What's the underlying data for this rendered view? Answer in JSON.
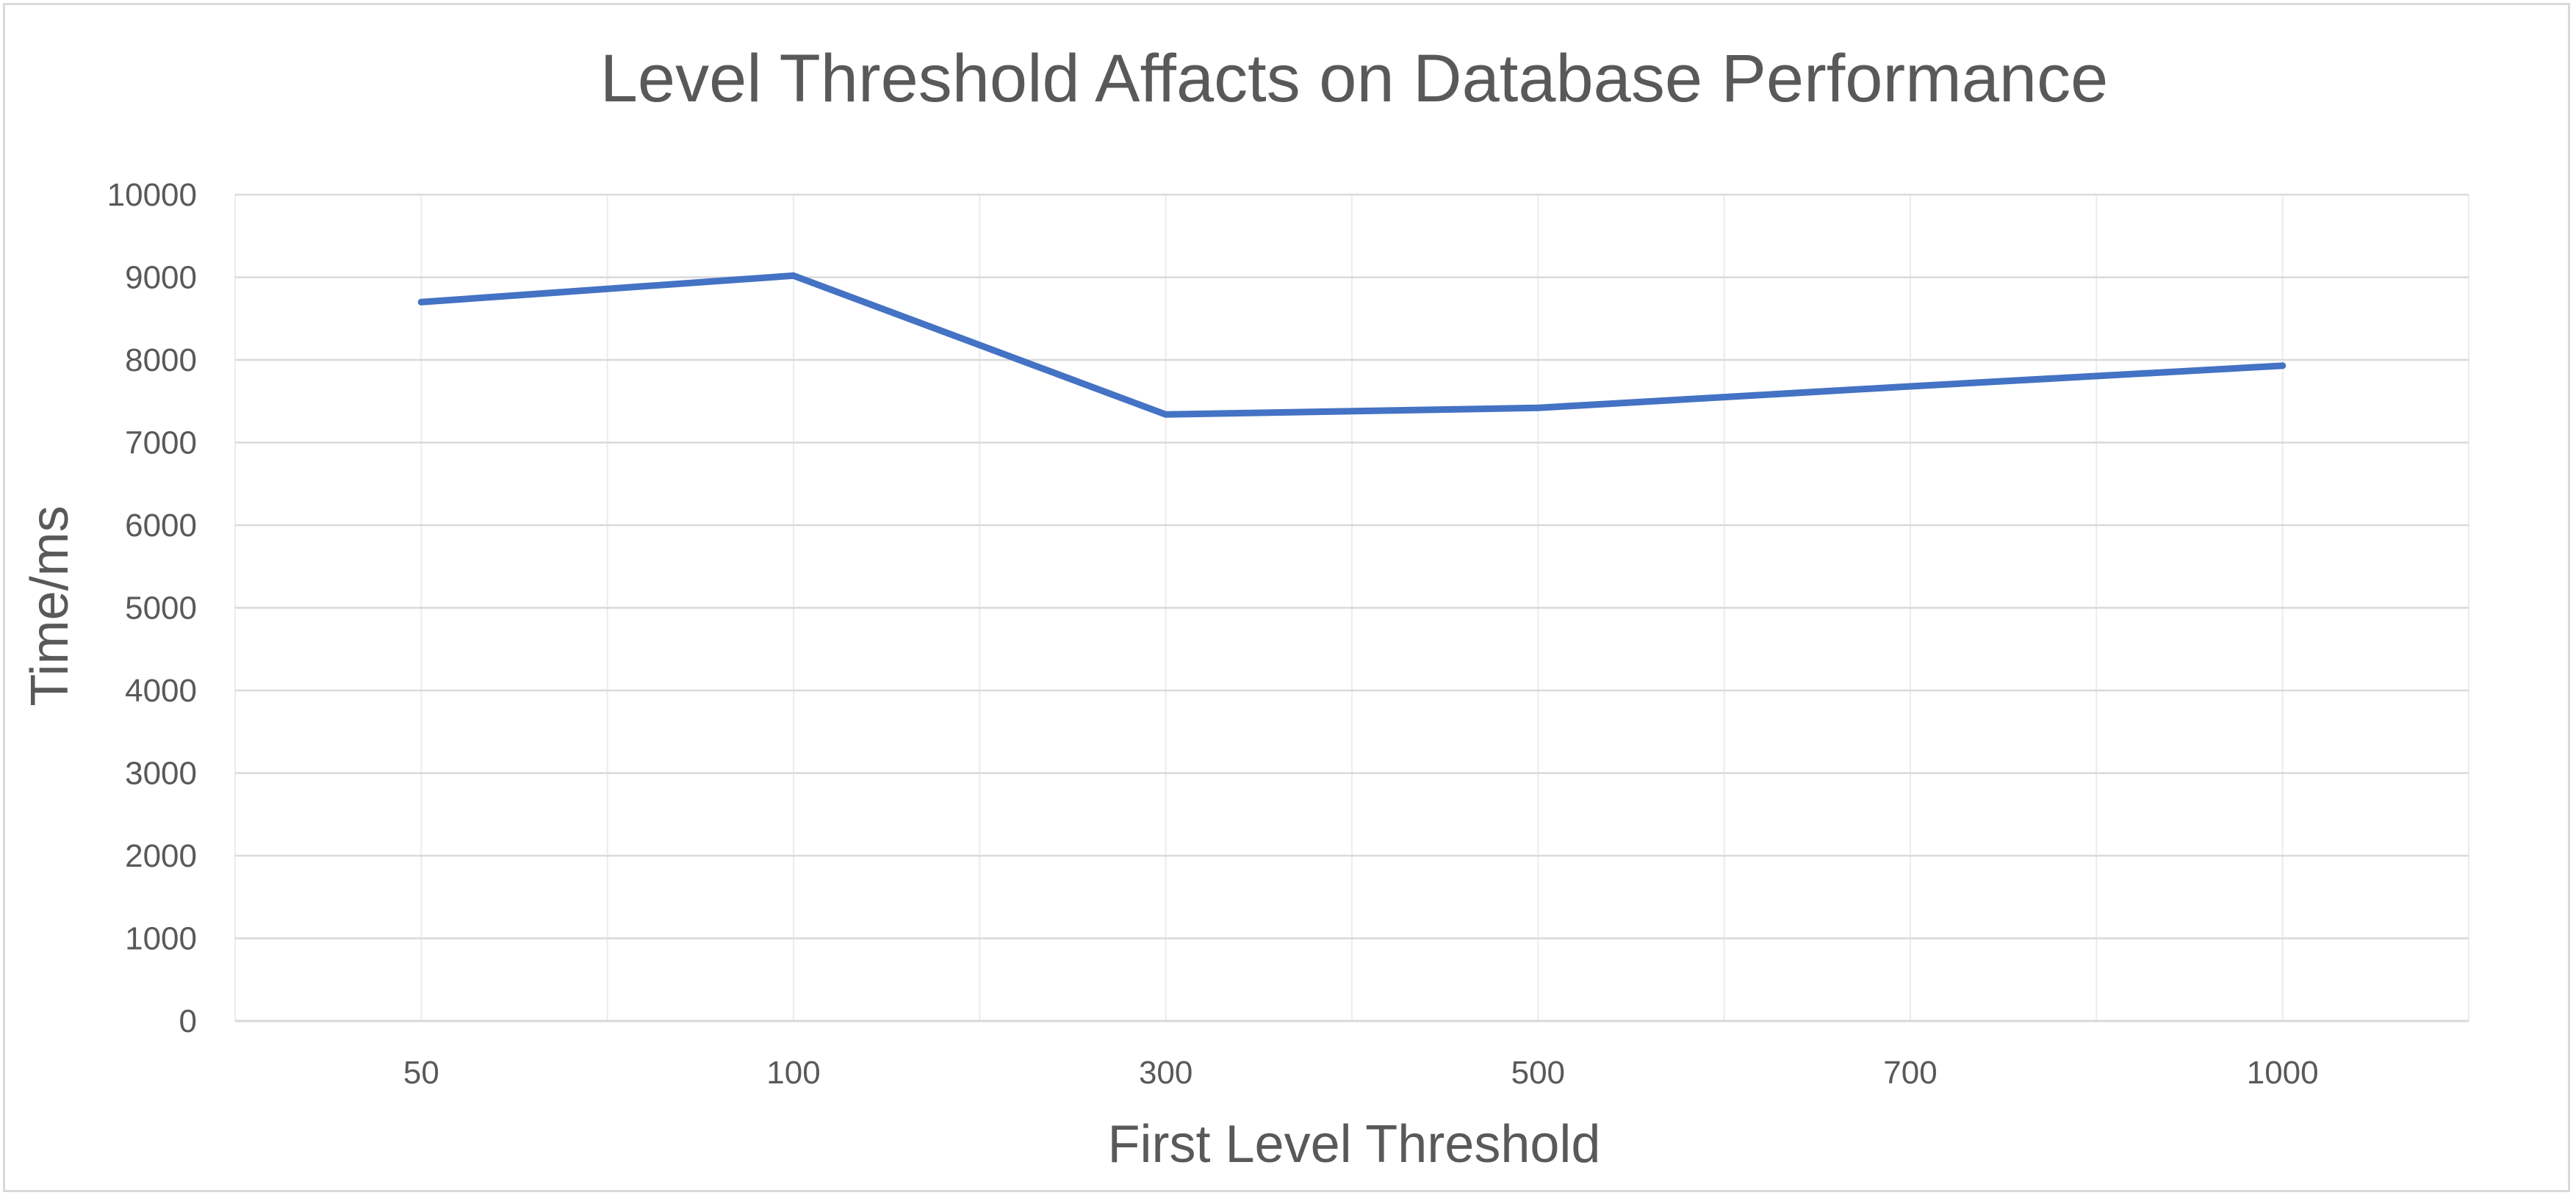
{
  "chart_data": {
    "type": "line",
    "title": "Level Threshold Affacts on Database Performance",
    "xlabel": "First Level Threshold",
    "ylabel": "Time/ms",
    "categories": [
      "50",
      "100",
      "300",
      "500",
      "700",
      "1000"
    ],
    "series": [
      {
        "values": [
          8700,
          9020,
          7340,
          7420,
          7680,
          7930
        ],
        "color": "#4472c4"
      }
    ],
    "ylim": [
      0,
      10000
    ],
    "y_ticks": [
      0,
      1000,
      2000,
      3000,
      4000,
      5000,
      6000,
      7000,
      8000,
      9000,
      10000
    ],
    "grid": true,
    "legend": "none"
  }
}
